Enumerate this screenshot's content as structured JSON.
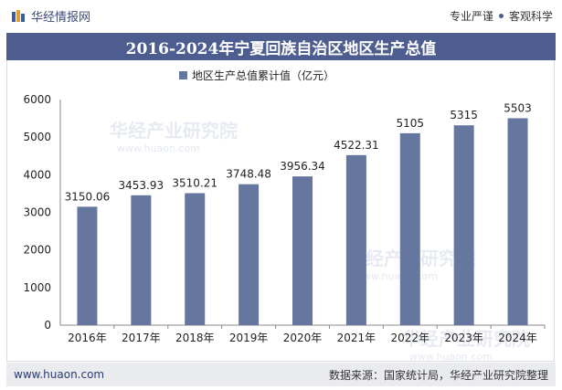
{
  "header": {
    "brand": "华经情报网",
    "tag_left": "专业严谨",
    "tag_right": "客观科学"
  },
  "chart_data": {
    "type": "bar",
    "title": "2016-2024年宁夏回族自治区地区生产总值",
    "categories": [
      "2016年",
      "2017年",
      "2018年",
      "2019年",
      "2020年",
      "2021年",
      "2022年",
      "2023年",
      "2024年"
    ],
    "series": [
      {
        "name": "地区生产总值累计值（亿元）",
        "values": [
          3150.06,
          3453.93,
          3510.21,
          3748.48,
          3956.34,
          4522.31,
          5105,
          5315,
          5503
        ],
        "labels": [
          "3150.06",
          "3453.93",
          "3510.21",
          "3748.48",
          "3956.34",
          "4522.31",
          "5105",
          "5315",
          "5503"
        ]
      }
    ],
    "ylim": [
      0,
      6000
    ],
    "yticks": [
      0,
      1000,
      2000,
      3000,
      4000,
      5000,
      6000
    ],
    "legend": "top",
    "grid": false,
    "bar_color": "#66779f"
  },
  "watermark": {
    "cn": "华经产业研究院",
    "en": "www.huaon.com"
  },
  "footer": {
    "url": "www.huaon.com",
    "source": "数据来源：国家统计局，华经产业研究院整理"
  },
  "colors": {
    "title_bg": "#4d5d8f",
    "footer_bg": "#e9ebef"
  }
}
